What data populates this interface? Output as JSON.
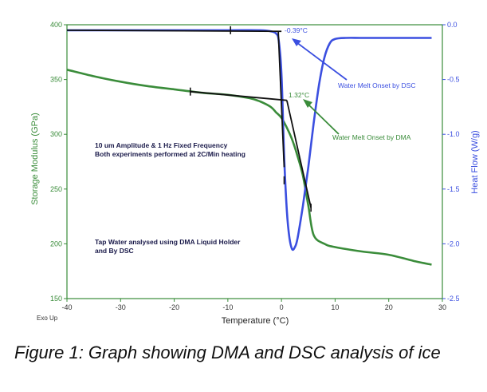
{
  "chart_data": {
    "type": "line",
    "xlabel": "Temperature (°C)",
    "ylabel": "Storage Modulus (GPa)",
    "y2label": "Heat Flow (W/g)",
    "xlim": [
      -40,
      30
    ],
    "ylim": [
      150,
      400
    ],
    "y2lim": [
      -2.5,
      0.0
    ],
    "x_ticks": [
      -40,
      -30,
      -20,
      -10,
      0,
      10,
      20,
      30
    ],
    "y_ticks": [
      150,
      200,
      250,
      300,
      350,
      400
    ],
    "y2_ticks": [
      -2.5,
      -2.0,
      -1.5,
      -1.0,
      -0.5,
      0.0
    ],
    "exo_label": "Exo Up",
    "grid": false,
    "colors": {
      "dma": "#3a8c3a",
      "dsc": "#3b4fe0",
      "frame": "#3a8c3a",
      "tangent": "#111111"
    },
    "series": [
      {
        "axis": "left",
        "color": "#3a8c3a",
        "x": [
          -40,
          -35,
          -30,
          -25,
          -20,
          -15,
          -10,
          -6,
          -4,
          -2,
          -1,
          0,
          1,
          2,
          3,
          4,
          5,
          6,
          8,
          10,
          15,
          20,
          25,
          28
        ],
        "y": [
          359,
          353,
          348,
          344,
          341,
          338,
          336,
          333,
          330,
          325,
          320,
          315,
          306,
          295,
          280,
          262,
          235,
          208,
          200,
          197,
          193,
          190,
          184,
          181
        ]
      },
      {
        "axis": "right",
        "color": "#3b4fe0",
        "x": [
          -40,
          -30,
          -20,
          -10,
          -4,
          -2,
          -1,
          -0.5,
          0,
          0.5,
          1,
          1.5,
          2,
          2.5,
          3,
          4,
          5,
          6,
          7,
          8,
          9,
          10,
          12,
          15,
          20,
          25,
          28
        ],
        "y": [
          -0.05,
          -0.05,
          -0.05,
          -0.05,
          -0.05,
          -0.06,
          -0.08,
          -0.15,
          -0.45,
          -1.2,
          -1.7,
          -1.95,
          -2.05,
          -2.03,
          -1.95,
          -1.65,
          -1.3,
          -0.9,
          -0.55,
          -0.3,
          -0.17,
          -0.13,
          -0.12,
          -0.12,
          -0.12,
          -0.12,
          -0.12
        ]
      }
    ],
    "tangents": [
      {
        "axis": "right",
        "points": [
          [
            -40,
            -0.05
          ],
          [
            0,
            -0.06
          ]
        ]
      },
      {
        "axis": "right",
        "points": [
          [
            -0.6,
            -0.06
          ],
          [
            0.5,
            -1.3
          ]
        ]
      },
      {
        "axis": "left",
        "points": [
          [
            -17,
            339
          ],
          [
            1,
            331
          ]
        ]
      },
      {
        "axis": "left",
        "points": [
          [
            1,
            331
          ],
          [
            5.5,
            233
          ]
        ]
      }
    ],
    "markers": [
      {
        "axis": "right",
        "x": -9.5,
        "y": -0.05
      },
      {
        "axis": "left",
        "x": -17,
        "y": 339
      },
      {
        "axis": "left",
        "x": 0.5,
        "y": 258
      },
      {
        "axis": "left",
        "x": 5.5,
        "y": 233
      }
    ],
    "annotations": {
      "dsc_onset_value": "-0.39°C",
      "dma_onset_value": "1.32°C",
      "dsc_onset_label": "Water Melt Onset by DSC",
      "dma_onset_label": "Water Melt Onset by DMA",
      "note1_line1": "10 um Amplitude & 1 Hz Fixed Frequency",
      "note1_line2": "Both experiments performed at 2C/Min heating",
      "note2_line1": "Tap Water analysed using DMA Liquid Holder",
      "note2_line2": "and By DSC"
    }
  },
  "caption": "Figure 1: Graph showing DMA and DSC analysis of ice"
}
